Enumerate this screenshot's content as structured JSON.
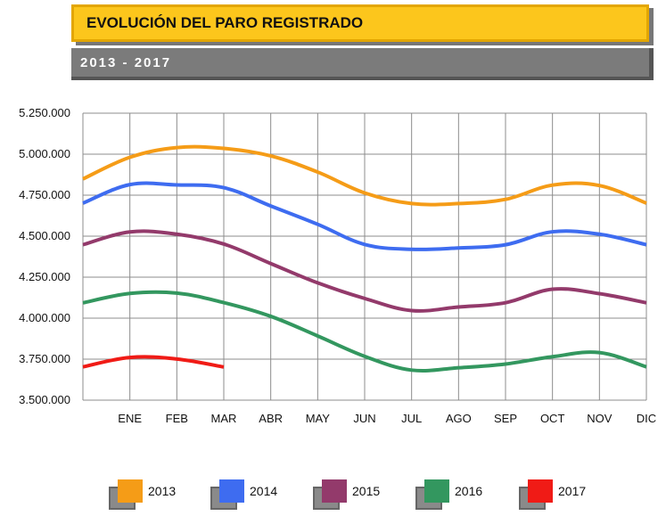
{
  "header": {
    "title": "EVOLUCIÓN DEL PARO REGISTRADO",
    "subtitle": "2013 - 2017"
  },
  "colors": {
    "title_bg": "#fcc61c",
    "subtitle_bg": "#7b7b7b",
    "grid": "#8c8c8c"
  },
  "chart_data": {
    "type": "line",
    "x_tick_labels": [
      "",
      "ENE",
      "FEB",
      "MAR",
      "ABR",
      "MAY",
      "JUN",
      "JUL",
      "AGO",
      "SEP",
      "OCT",
      "NOV",
      "DIC"
    ],
    "y_tick_labels": [
      "5.250.000",
      "5.000.000",
      "4.750.000",
      "4.500.000",
      "4.250.000",
      "4.000.000",
      "3.750.000",
      "3.500.000"
    ],
    "ylim": [
      3500000,
      5250000
    ],
    "grid": true,
    "legend_position": "bottom",
    "series": [
      {
        "name": "2013",
        "color": "#f59c17",
        "values": [
          4848723,
          4980778,
          5040222,
          5035234,
          4989193,
          4890928,
          4763680,
          4698814,
          4698783,
          4724355,
          4811383,
          4808908,
          4701338
        ]
      },
      {
        "name": "2014",
        "color": "#3e6cf0",
        "values": [
          4701338,
          4814435,
          4812486,
          4795866,
          4684301,
          4572385,
          4449701,
          4419860,
          4427930,
          4447650,
          4526804,
          4512153,
          4447711
        ]
      },
      {
        "name": "2015",
        "color": "#933a6b",
        "values": [
          4447711,
          4525691,
          4512153,
          4451939,
          4333016,
          4215031,
          4120304,
          4046276,
          4067955,
          4094042,
          4176369,
          4149298,
          4093508
        ]
      },
      {
        "name": "2016",
        "color": "#33975f",
        "values": [
          4093508,
          4150710,
          4152986,
          4094770,
          4011171,
          3891403,
          3767054,
          3683061,
          3697496,
          3720297,
          3764982,
          3789823,
          3702974
        ]
      },
      {
        "name": "2017",
        "color": "#f01b16",
        "values": [
          3702974,
          3760231,
          3750876,
          3702317
        ]
      }
    ]
  },
  "legend": [
    {
      "label": "2013",
      "color": "#f59c17"
    },
    {
      "label": "2014",
      "color": "#3e6cf0"
    },
    {
      "label": "2015",
      "color": "#933a6b"
    },
    {
      "label": "2016",
      "color": "#33975f"
    },
    {
      "label": "2017",
      "color": "#f01b16"
    }
  ]
}
